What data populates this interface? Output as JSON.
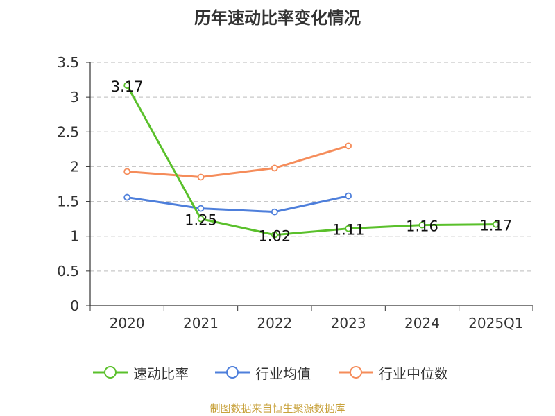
{
  "chart_data": {
    "type": "line",
    "title": "历年速动比率变化情况",
    "categories": [
      "2020",
      "2021",
      "2022",
      "2023",
      "2024",
      "2025Q1"
    ],
    "ylim": [
      0,
      3.5
    ],
    "yticks": [
      "0",
      "0.5",
      "1",
      "1.5",
      "2",
      "2.5",
      "3",
      "3.5"
    ],
    "grid": true,
    "legend_position": "bottom",
    "series": [
      {
        "name": "速动比率",
        "color": "#5ac02b",
        "values": [
          3.17,
          1.25,
          1.02,
          1.11,
          1.16,
          1.17
        ],
        "labels": [
          "3.17",
          "1.25",
          "1.02",
          "1.11",
          "1.16",
          "1.17"
        ]
      },
      {
        "name": "行业均值",
        "color": "#4e7fdb",
        "values": [
          1.56,
          1.4,
          1.35,
          1.58,
          null,
          null
        ]
      },
      {
        "name": "行业中位数",
        "color": "#f58c5a",
        "values": [
          1.93,
          1.85,
          1.98,
          2.3,
          null,
          null
        ]
      }
    ]
  },
  "source_text": "制图数据来自恒生聚源数据库",
  "source_color": "#c8a23c"
}
